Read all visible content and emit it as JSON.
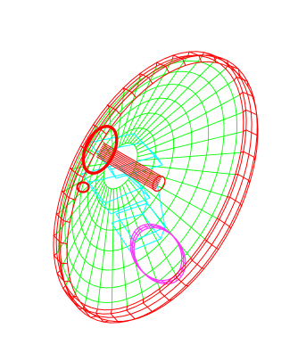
{
  "viewport": {
    "render_mode": "wireframe",
    "background": "#ffffff"
  },
  "colors": {
    "outer_rim": "#ff0000",
    "dish_mesh": "#00ff00",
    "mount_bracket": "#00ffff",
    "feed_ring": "#ff33ff",
    "feed_cylinder": "#ff0000"
  },
  "parts": [
    {
      "name": "outer-rim",
      "color": "#ff0000"
    },
    {
      "name": "dish-mesh",
      "color": "#00ff00"
    },
    {
      "name": "mount-bracket",
      "color": "#00ffff"
    },
    {
      "name": "feed-cylinder",
      "color": "#ff0000"
    },
    {
      "name": "feed-ring",
      "color": "#ff33ff"
    }
  ]
}
